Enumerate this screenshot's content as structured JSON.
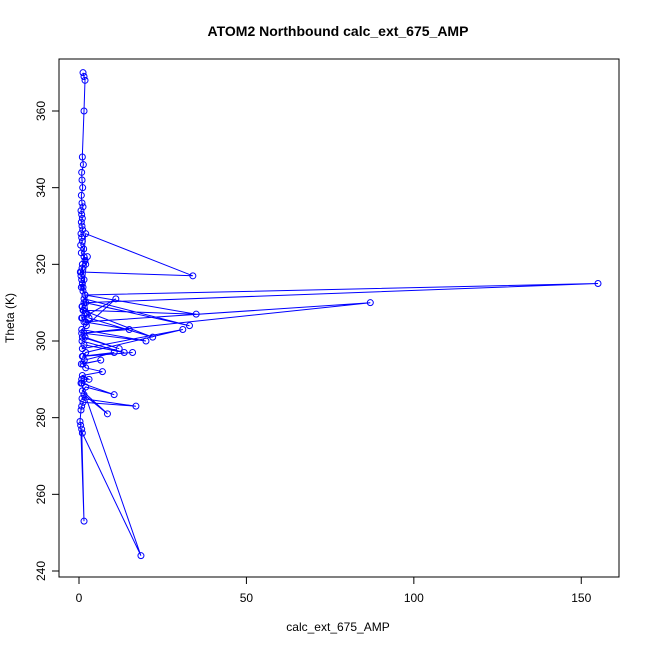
{
  "chart_data": {
    "type": "line",
    "title": "ATOM2 Northbound calc_ext_675_AMP",
    "xlabel": "calc_ext_675_AMP",
    "ylabel": "Theta (K)",
    "xlim": [
      0,
      155
    ],
    "ylim": [
      240,
      372
    ],
    "xticks": [
      0,
      50,
      100,
      150
    ],
    "yticks": [
      240,
      260,
      280,
      300,
      320,
      340,
      360
    ],
    "grid": false,
    "legend": "none",
    "color": "#0000ff",
    "series": [
      {
        "x": [
          1.2,
          1.5,
          1.8,
          1.5,
          1.0,
          1.3,
          0.8,
          0.9,
          1.1,
          0.7,
          0.9,
          1.2,
          0.6,
          0.8,
          1.0,
          0.7,
          0.9,
          1.1,
          0.6,
          0.8,
          1.0,
          0.5,
          1.4,
          0.7,
          1.5,
          1.8,
          2.0,
          0.9,
          0.4,
          0.6,
          1.5,
          1.0,
          0.7,
          1.2,
          2.5,
          1.0,
          0.6,
          34.0,
          2.0,
          0.8,
          1.2,
          1.8,
          155.0,
          1.5,
          0.9,
          1.3,
          2.5,
          0.8,
          1.5,
          33.0,
          2.0,
          1.0,
          1.4,
          35.0,
          1.8,
          3.0,
          22.0,
          1.2,
          2.0,
          87.0,
          0.8,
          15.0,
          1.5,
          1.0,
          11.0,
          2.2,
          0.8,
          20.0,
          1.5,
          1.0,
          12.0,
          1.8,
          0.9,
          13.5,
          1.5,
          1.0,
          31.0,
          2.0,
          1.2,
          16.0,
          1.0,
          10.5,
          1.6,
          0.7,
          6.5,
          1.2,
          2.0,
          7.0,
          1.0,
          3.0,
          1.5,
          0.9,
          10.5,
          2.0,
          1.0,
          8.5,
          1.5,
          0.9,
          17.0,
          1.2,
          0.8,
          0.6,
          0.3,
          0.5,
          1.5,
          0.8,
          1.0,
          18.5,
          0.6,
          0.8
        ],
        "y": [
          370,
          369,
          368,
          360,
          348,
          346,
          344,
          342,
          340,
          338,
          336,
          335,
          334,
          333,
          332,
          331,
          330,
          329,
          328,
          327,
          326,
          325,
          324,
          323,
          322,
          321,
          320,
          319,
          318,
          317,
          316,
          315,
          314,
          313,
          322,
          320,
          318,
          317,
          328,
          316,
          314,
          312,
          315,
          310,
          309,
          308,
          307,
          306,
          311,
          304,
          310,
          309,
          308,
          307,
          312,
          306,
          301,
          308,
          305,
          310,
          302,
          303,
          305,
          306,
          311,
          304,
          303,
          300,
          302,
          301,
          298,
          301,
          300,
          297,
          299,
          298,
          303,
          297,
          296,
          297,
          296,
          297,
          295,
          294,
          295,
          294,
          293,
          292,
          291,
          290,
          290,
          289,
          286,
          288,
          287,
          281,
          286,
          285,
          283,
          284,
          283,
          282,
          279,
          278,
          253,
          277,
          276,
          244,
          289,
          290
        ]
      }
    ]
  }
}
